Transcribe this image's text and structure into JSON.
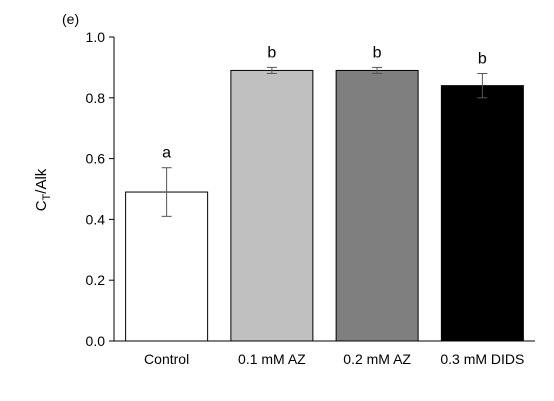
{
  "panel_label": "(e)",
  "chart_data": {
    "type": "bar",
    "title": "",
    "xlabel": "",
    "ylabel_main": "C",
    "ylabel_sub": "T",
    "ylabel_tail": "/Alk",
    "ylim": [
      0.0,
      1.0
    ],
    "yticks": [
      "0.0",
      "0.2",
      "0.4",
      "0.6",
      "0.8",
      "1.0"
    ],
    "grid": false,
    "categories": [
      "Control",
      "0.1 mM AZ",
      "0.2 mM AZ",
      "0.3 mM DIDS"
    ],
    "values": [
      0.49,
      0.89,
      0.89,
      0.84
    ],
    "errors": [
      0.08,
      0.01,
      0.01,
      0.04
    ],
    "significance_letters": [
      "a",
      "b",
      "b",
      "b"
    ],
    "bar_colors": [
      "#ffffff",
      "#c0c0c0",
      "#7f7f7f",
      "#000000"
    ]
  }
}
